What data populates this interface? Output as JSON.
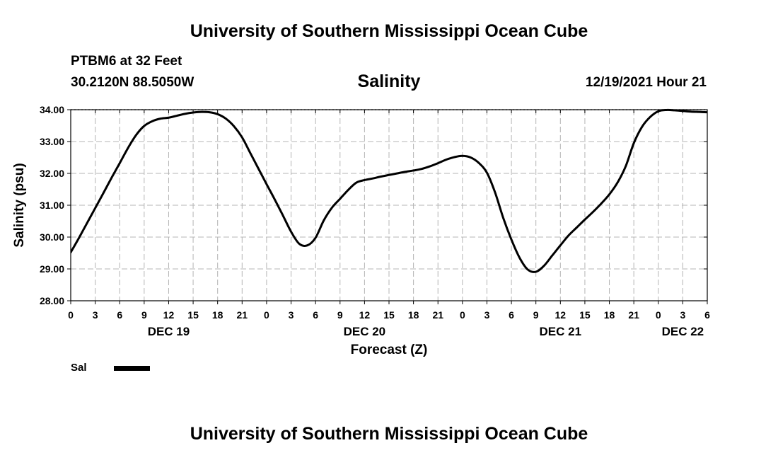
{
  "header": {
    "title": "University of Southern Mississippi Ocean Cube",
    "station": "PTBM6 at 32 Feet",
    "coords": "30.2120N  88.5050W",
    "datetime": "12/19/2021 Hour 21"
  },
  "footer": {
    "title": "University of Southern Mississippi Ocean Cube"
  },
  "legend": {
    "label": "Sal"
  },
  "chart_data": {
    "type": "line",
    "title": "Salinity",
    "xlabel": "Forecast (Z)",
    "ylabel": "Salinity (psu)",
    "xlim": [
      0,
      78
    ],
    "ylim": [
      28.0,
      34.0
    ],
    "yticks": [
      28.0,
      29.0,
      30.0,
      31.0,
      32.0,
      33.0,
      34.0
    ],
    "ytick_labels": [
      "28.00",
      "29.00",
      "30.00",
      "31.00",
      "32.00",
      "33.00",
      "34.00"
    ],
    "xtick_labels": [
      "0",
      "3",
      "6",
      "9",
      "12",
      "15",
      "18",
      "21",
      "0",
      "3",
      "6",
      "9",
      "12",
      "15",
      "18",
      "21",
      "0",
      "3",
      "6",
      "9",
      "12",
      "15",
      "18",
      "21",
      "0",
      "3",
      "6"
    ],
    "day_labels": [
      {
        "label": "DEC 19",
        "hour": 12
      },
      {
        "label": "DEC 20",
        "hour": 36
      },
      {
        "label": "DEC 21",
        "hour": 60
      },
      {
        "label": "DEC 22",
        "hour": 75
      }
    ],
    "grid": true,
    "color": "#000000",
    "series": [
      {
        "name": "Sal",
        "x": [
          0,
          1,
          2,
          3,
          4,
          5,
          6,
          7,
          8,
          9,
          10,
          11,
          12,
          13,
          14,
          15,
          16,
          17,
          18,
          19,
          20,
          21,
          22,
          23,
          24,
          25,
          26,
          27,
          28,
          29,
          30,
          31,
          32,
          33,
          34,
          35,
          36,
          37,
          38,
          39,
          40,
          41,
          42,
          43,
          44,
          45,
          46,
          47,
          48,
          49,
          50,
          51,
          52,
          53,
          54,
          55,
          56,
          57,
          58,
          59,
          60,
          61,
          62,
          63,
          64,
          65,
          66,
          67,
          68,
          69,
          70,
          71,
          72,
          73,
          74,
          75,
          76,
          77,
          78
        ],
        "y": [
          29.52,
          29.97,
          30.44,
          30.91,
          31.38,
          31.86,
          32.32,
          32.79,
          33.2,
          33.49,
          33.64,
          33.72,
          33.75,
          33.81,
          33.87,
          33.91,
          33.93,
          33.92,
          33.86,
          33.72,
          33.48,
          33.13,
          32.64,
          32.15,
          31.66,
          31.18,
          30.68,
          30.17,
          29.79,
          29.74,
          29.98,
          30.52,
          30.92,
          31.2,
          31.48,
          31.71,
          31.79,
          31.84,
          31.9,
          31.95,
          32.0,
          32.05,
          32.09,
          32.14,
          32.22,
          32.32,
          32.43,
          32.51,
          32.55,
          32.5,
          32.33,
          32.02,
          31.4,
          30.6,
          29.92,
          29.35,
          28.98,
          28.91,
          29.1,
          29.42,
          29.74,
          30.05,
          30.3,
          30.55,
          30.79,
          31.05,
          31.34,
          31.71,
          32.22,
          32.95,
          33.46,
          33.77,
          33.95,
          33.99,
          33.98,
          33.96,
          33.94,
          33.93,
          33.92
        ]
      }
    ]
  }
}
